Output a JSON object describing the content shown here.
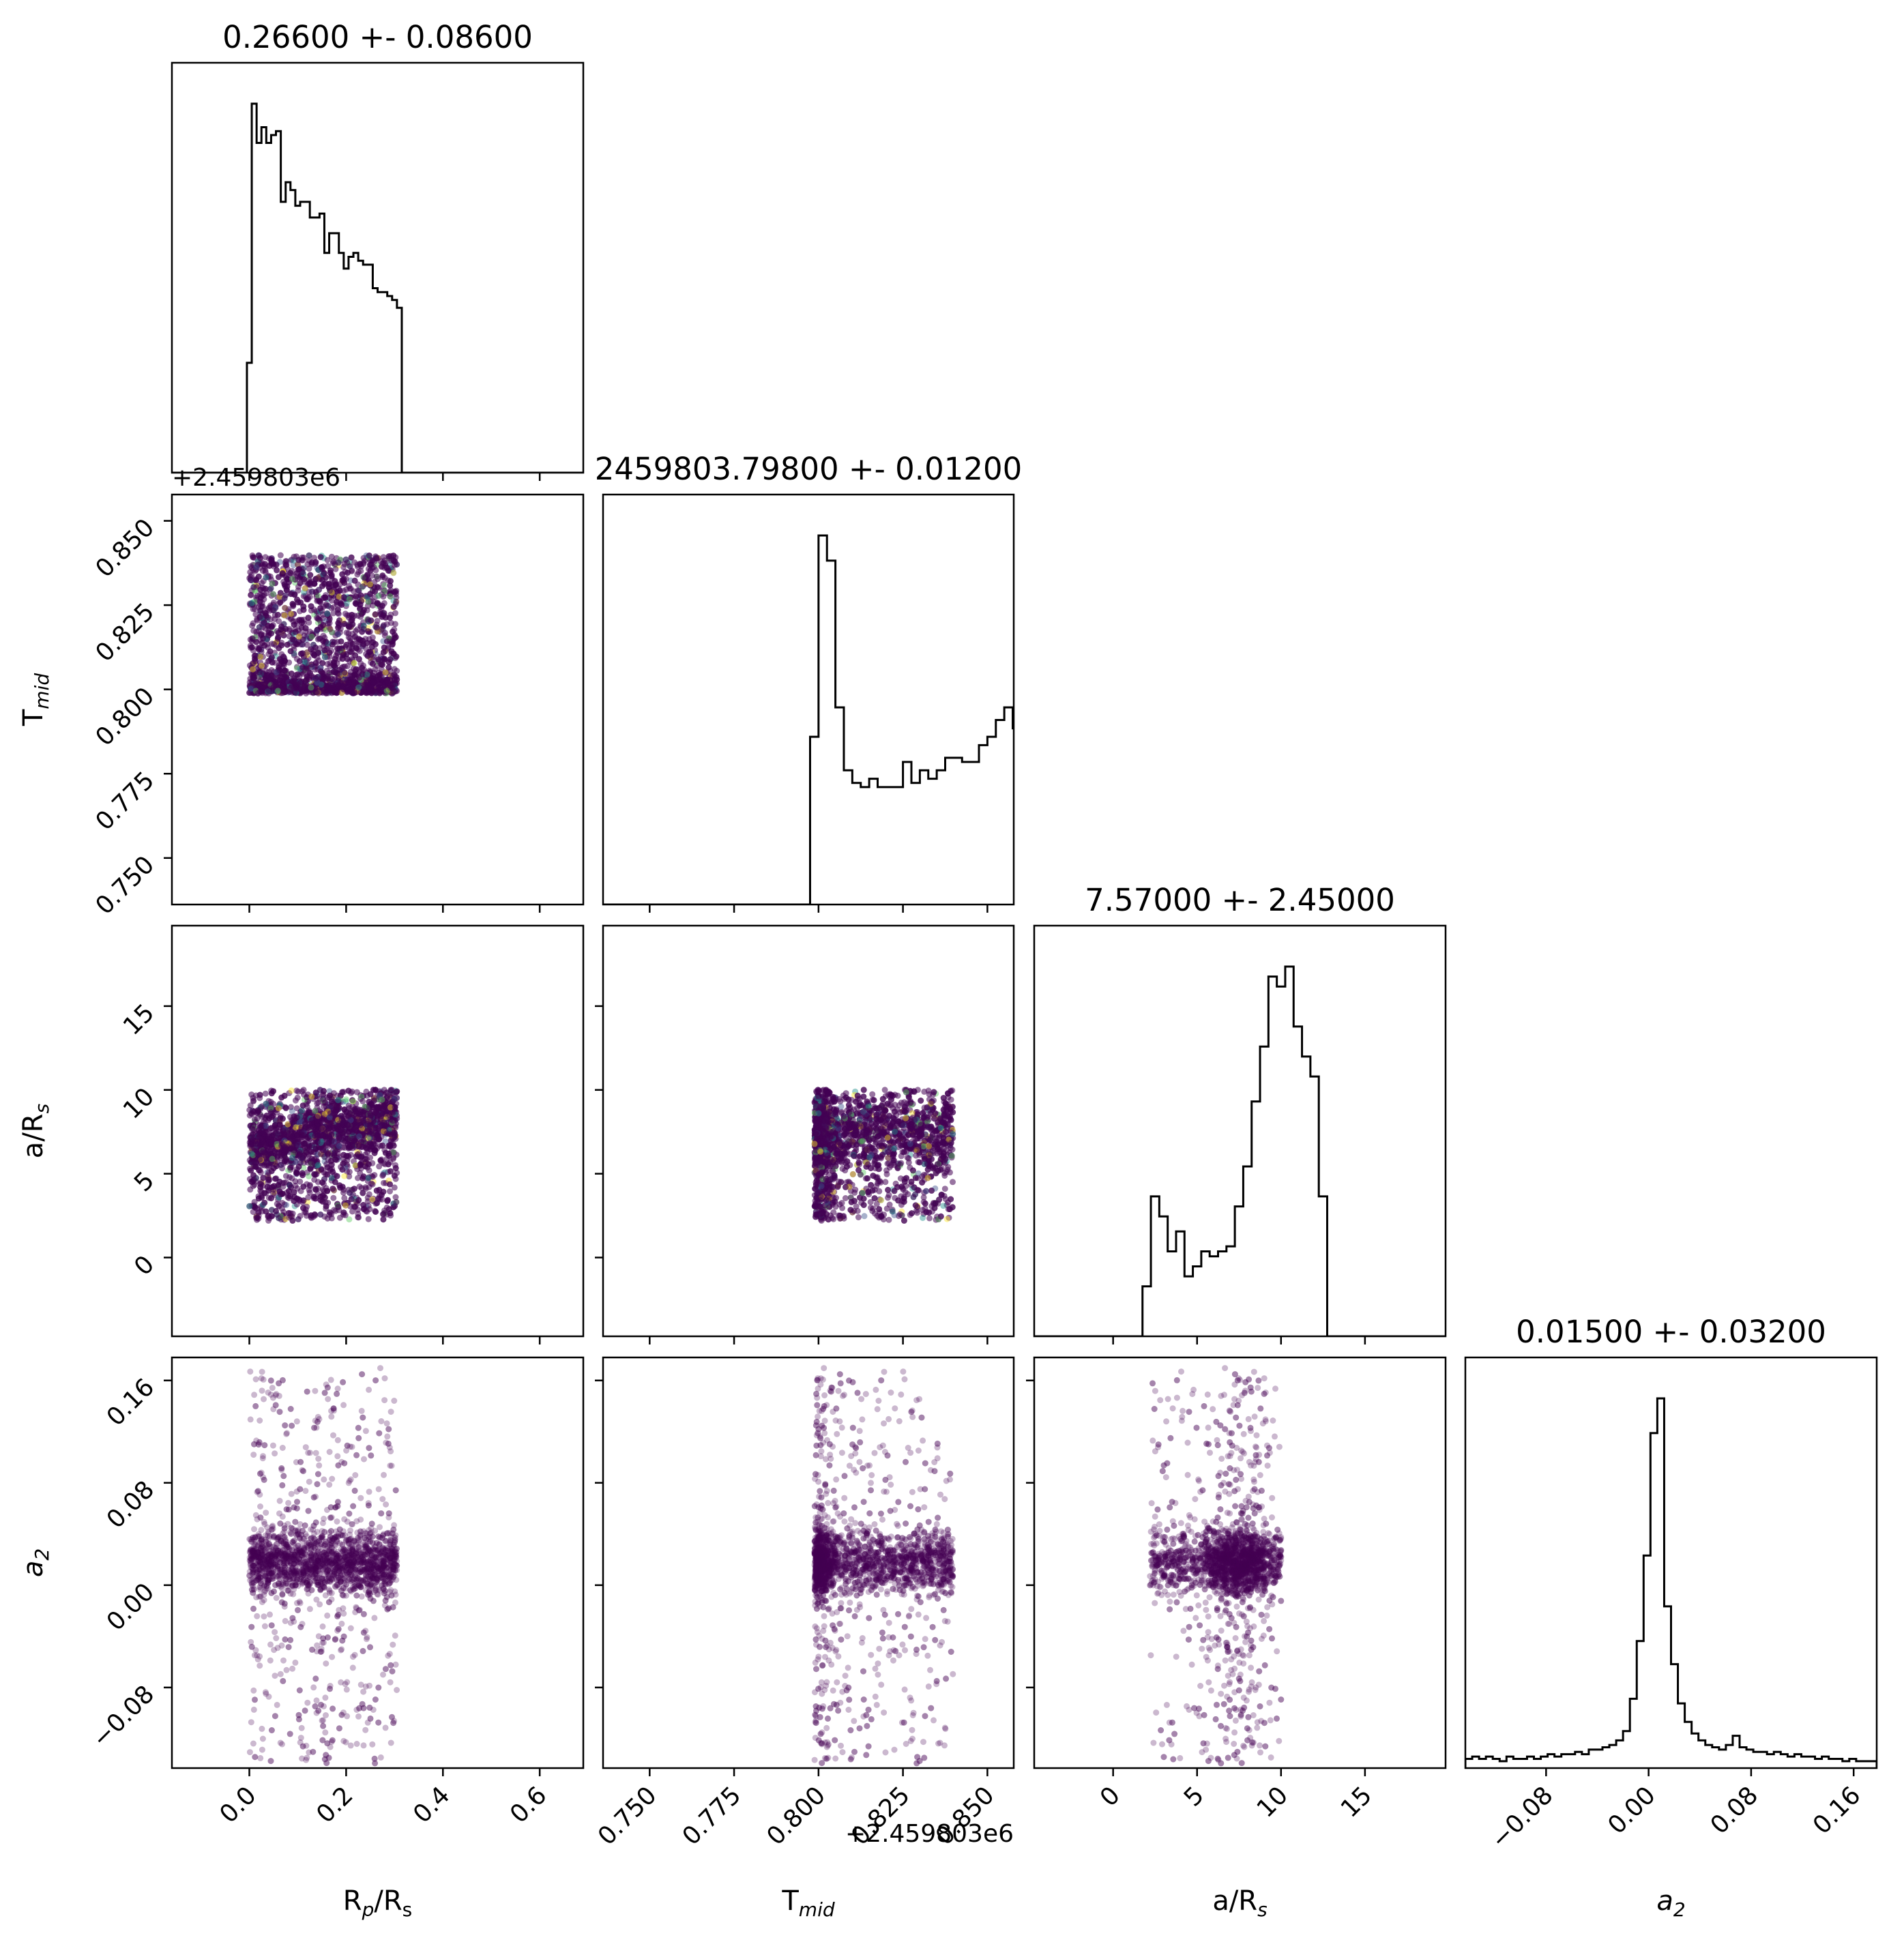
{
  "chart_data": {
    "type": "scatter",
    "subtype": "corner-plot",
    "parameters": [
      {
        "id": "rp",
        "label": "R",
        "label_sub": "p",
        "label_suffix": "/R",
        "label_suffix_sub": "s",
        "italic": false,
        "range": [
          -0.16,
          0.69
        ],
        "ticks": [
          0.0,
          0.2,
          0.4,
          0.6
        ],
        "tick_labels": [
          "0.0",
          "0.2",
          "0.4",
          "0.6"
        ]
      },
      {
        "id": "tmid",
        "label": "T",
        "label_sub": "mid",
        "label_suffix": "",
        "label_suffix_sub": "",
        "italic": false,
        "range": [
          0.7362,
          0.8578
        ],
        "ticks": [
          0.75,
          0.775,
          0.8,
          0.825,
          0.85
        ],
        "tick_labels": [
          "0.750",
          "0.775",
          "0.800",
          "0.825",
          "0.850"
        ],
        "offset_label": "+2.459803e6"
      },
      {
        "id": "ars",
        "label": "a/R",
        "label_sub": "s",
        "label_suffix": "",
        "label_suffix_sub": "",
        "italic": false,
        "range": [
          -4.7,
          19.8
        ],
        "ticks": [
          0,
          5,
          10,
          15
        ],
        "tick_labels": [
          "0",
          "5",
          "10",
          "15"
        ]
      },
      {
        "id": "a2",
        "label": "a",
        "label_sub": "2",
        "label_suffix": "",
        "label_suffix_sub": "",
        "italic": true,
        "range": [
          -0.143,
          0.178
        ],
        "ticks": [
          -0.08,
          0.0,
          0.08,
          0.16
        ],
        "tick_labels": [
          "−0.08",
          "0.00",
          "0.08",
          "0.16"
        ]
      }
    ],
    "diagonal_titles": [
      "0.26600 +- 0.08600",
      "2459803.79800 +- 0.01200",
      "7.57000 +- 2.45000",
      "0.01500 +- 0.03200"
    ],
    "histograms": [
      {
        "edges_start": -0.005,
        "bin_width": 0.01,
        "counts": [
          28,
          94,
          84,
          88,
          84,
          86,
          87,
          69,
          74,
          72,
          68,
          69,
          69,
          65,
          65,
          66,
          56,
          61,
          61,
          56,
          52,
          55,
          56,
          54,
          53,
          53,
          47,
          46,
          46,
          45,
          44,
          42
        ]
      },
      {
        "edges_start": 0.7975,
        "bin_width": 0.0025,
        "counts": [
          40,
          88,
          82,
          47,
          32,
          29,
          28,
          30,
          28,
          28,
          28,
          34,
          29,
          32,
          30,
          32,
          35,
          35,
          34,
          34,
          38,
          40,
          44,
          47,
          42,
          40,
          38,
          36,
          32,
          30,
          28,
          26,
          24,
          22,
          20,
          18,
          16
        ]
      },
      {
        "edges_start": 1.75,
        "bin_width": 0.5,
        "counts": [
          10,
          28,
          24,
          17,
          21,
          12,
          14,
          17,
          16,
          17,
          18,
          26,
          34,
          47,
          58,
          72,
          70,
          74,
          62,
          56,
          52,
          28
        ]
      },
      {
        "edges_start": -0.143,
        "bin_width": 0.00535,
        "counts": [
          4,
          5,
          4,
          5,
          4,
          3,
          5,
          4,
          4,
          5,
          4,
          5,
          6,
          5,
          6,
          6,
          7,
          6,
          8,
          8,
          9,
          10,
          12,
          16,
          30,
          55,
          92,
          145,
          160,
          70,
          45,
          28,
          20,
          15,
          12,
          10,
          9,
          8,
          10,
          14,
          9,
          8,
          7,
          7,
          6,
          7,
          6,
          5,
          6,
          5,
          5,
          4,
          5,
          4,
          4,
          3,
          4,
          3,
          3,
          3
        ]
      }
    ],
    "sample_regions": {
      "rp": [
        0.0,
        0.305
      ],
      "tmid": [
        0.7988,
        0.8398
      ],
      "ars": [
        2.2,
        10.0
      ],
      "a2_core": 0.018,
      "a2_core_width": 0.012
    },
    "colors": {
      "points": "#440154",
      "secondary": [
        "#3b528b",
        "#21918c",
        "#5ec962",
        "#fde725"
      ],
      "hist": "#000000"
    },
    "grid": false,
    "legend": "none"
  }
}
